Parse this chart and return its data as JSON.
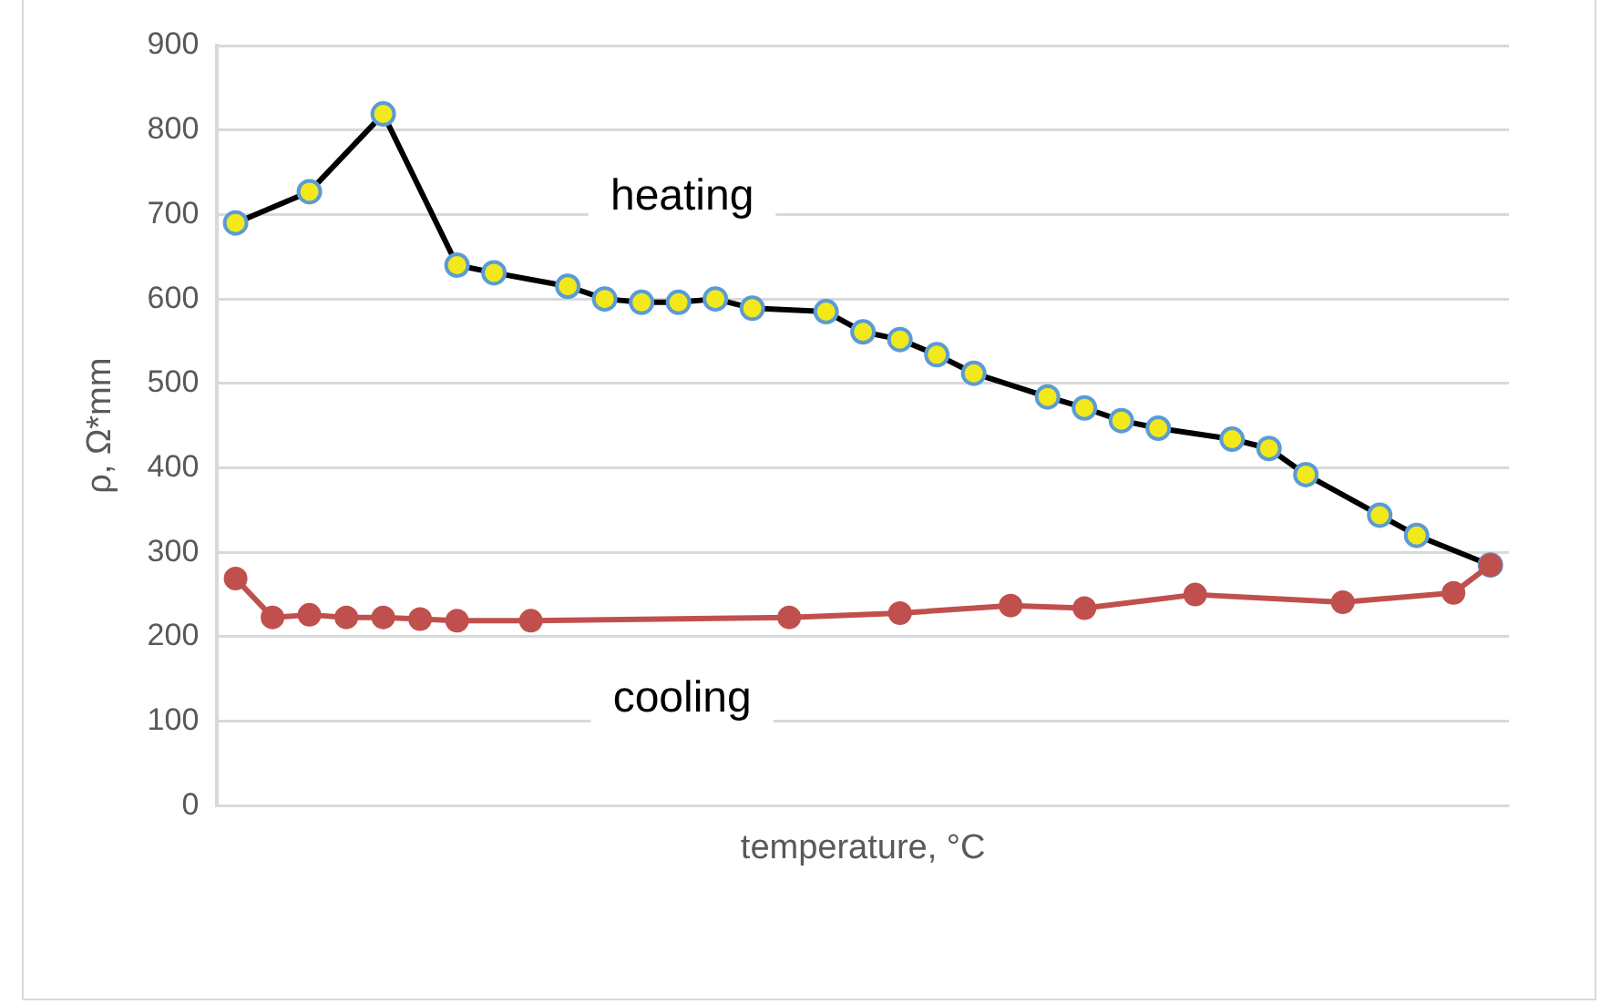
{
  "chart_data": {
    "type": "line",
    "xlabel": "temperature, °C",
    "ylabel": "ρ, Ω*mm",
    "categories": [
      null,
      null,
      null,
      null,
      null,
      null,
      null,
      null,
      null,
      null,
      null,
      null,
      null,
      null,
      null,
      null,
      null,
      null,
      null,
      null,
      null,
      null,
      null,
      null,
      null,
      null,
      null,
      null,
      null,
      null,
      null,
      null,
      null,
      null,
      null
    ],
    "ylim": [
      0,
      900
    ],
    "yticks": [
      0,
      100,
      200,
      300,
      400,
      500,
      600,
      700,
      800,
      900
    ],
    "tick_labels": "y",
    "grid": "y",
    "legend": false,
    "marker": "circle",
    "line_style": "solid",
    "series": [
      {
        "name": "heating",
        "color": "#000000",
        "values": [
          690,
          null,
          727,
          null,
          819,
          null,
          640,
          631,
          null,
          615,
          600,
          596,
          596,
          600,
          589,
          null,
          585,
          561,
          552,
          534,
          512,
          null,
          484,
          471,
          456,
          447,
          null,
          434,
          423,
          392,
          null,
          344,
          320,
          null,
          285
        ]
      },
      {
        "name": "cooling",
        "color": "#c0504d",
        "values": [
          269,
          223,
          226,
          223,
          223,
          221,
          219,
          null,
          219,
          null,
          null,
          null,
          null,
          null,
          null,
          223,
          null,
          null,
          228,
          null,
          null,
          237,
          null,
          234,
          null,
          null,
          250,
          null,
          null,
          null,
          241,
          null,
          null,
          252,
          285
        ]
      }
    ]
  }
}
